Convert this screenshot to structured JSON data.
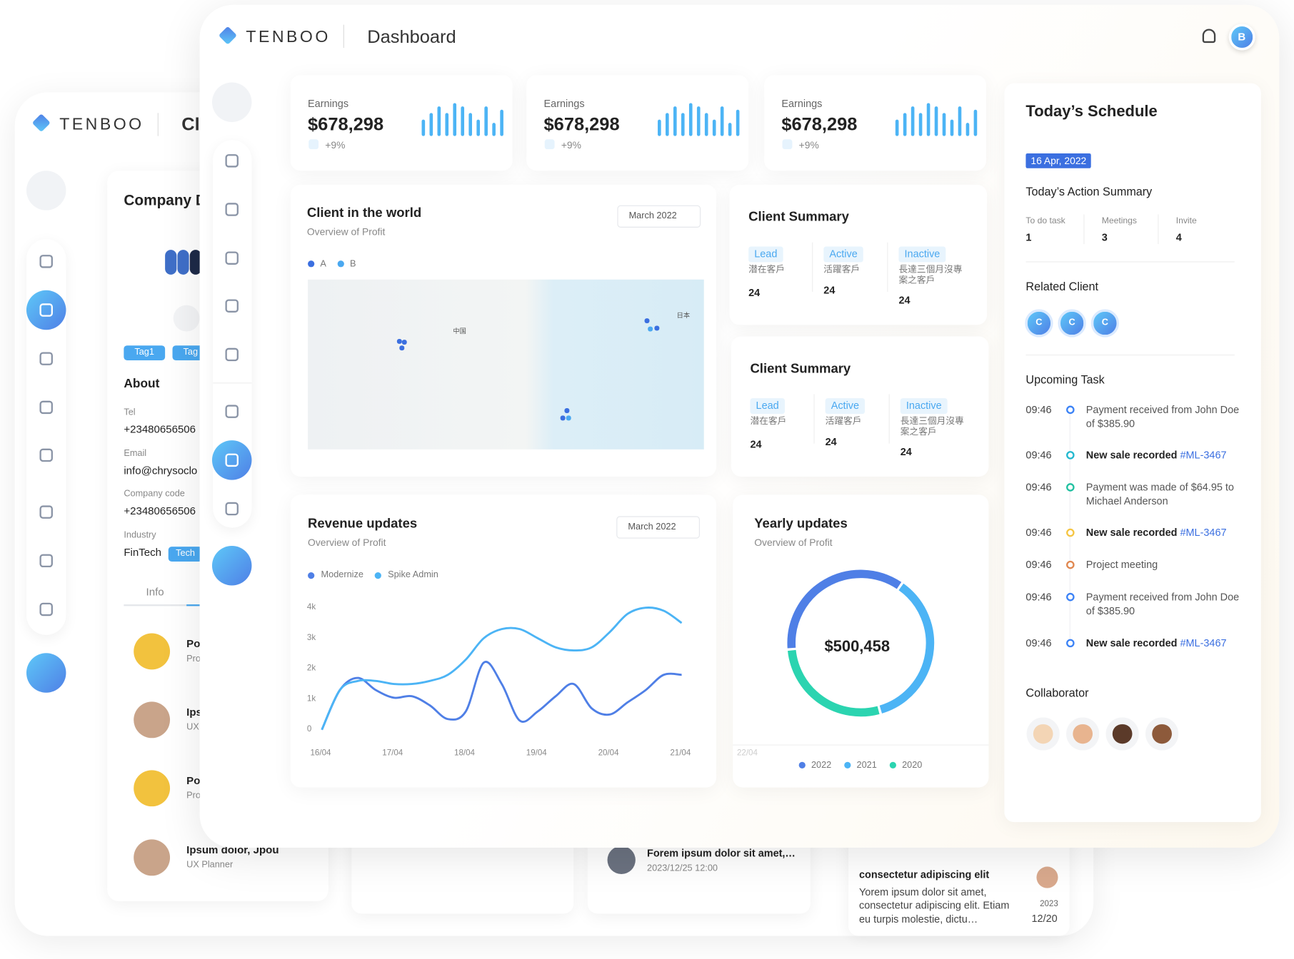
{
  "back": {
    "logo": "TENBOO",
    "title": "Cl",
    "company": {
      "title": "Company D",
      "tags": [
        "Tag1",
        "Tag"
      ],
      "about": "About",
      "fields": [
        {
          "label": "Tel",
          "value": "+23480656506"
        },
        {
          "label": "Email",
          "value": "info@chrysoclo"
        },
        {
          "label": "Company code",
          "value": "+23480656506"
        },
        {
          "label": "Industry",
          "value": "FinTech"
        }
      ],
      "industry_tag": "Tech",
      "tab": "Info",
      "people": [
        {
          "name": "Po",
          "role": "Pro"
        },
        {
          "name": "Ips",
          "role": "UX"
        },
        {
          "name": "Po",
          "role": "Pro"
        },
        {
          "name": "Ipsum dolor, Jpou",
          "role": "UX Planner"
        }
      ]
    },
    "post": {
      "text": "Forem ipsum dolor sit amet,…",
      "date": "2023/12/25 12:00"
    },
    "note": {
      "title": "consectetur adipiscing elit",
      "body": "Yorem ipsum dolor sit amet, consectetur adipiscing elit. Etiam eu turpis molestie, dictu…",
      "year": "2023",
      "date": "12/20"
    }
  },
  "front": {
    "logo": "TENBOO",
    "title": "Dashboard",
    "avatar": "B",
    "earnings": [
      {
        "label": "Earnings",
        "value": "$678,298",
        "change": "+9%",
        "bars": [
          5,
          7,
          9,
          7,
          10,
          9,
          7,
          5,
          9,
          4,
          8
        ]
      },
      {
        "label": "Earnings",
        "value": "$678,298",
        "change": "+9%",
        "bars": [
          5,
          7,
          9,
          7,
          10,
          9,
          7,
          5,
          9,
          4,
          8
        ]
      },
      {
        "label": "Earnings",
        "value": "$678,298",
        "change": "+9%",
        "bars": [
          5,
          7,
          9,
          7,
          10,
          9,
          7,
          5,
          9,
          4,
          8
        ]
      }
    ],
    "world": {
      "title": "Client in the world",
      "subtitle": "Overview of Profit",
      "period": "March 2022",
      "legend": [
        "A",
        "B"
      ],
      "places": [
        "中国",
        "日本"
      ]
    },
    "summaries": [
      {
        "title": "Client Summary",
        "columns": [
          {
            "tag": "Lead",
            "label": "潜在客戶",
            "value": 24
          },
          {
            "tag": "Active",
            "label": "活躍客戶",
            "value": 24
          },
          {
            "tag": "Inactive",
            "label": "長達三個月沒專案之客戶",
            "value": 24
          }
        ]
      },
      {
        "title": "Client Summary",
        "columns": [
          {
            "tag": "Lead",
            "label": "潜在客戶",
            "value": 24
          },
          {
            "tag": "Active",
            "label": "活躍客戶",
            "value": 24
          },
          {
            "tag": "Inactive",
            "label": "長達三個月沒專案之客戶",
            "value": 24
          }
        ]
      }
    ],
    "revenue": {
      "title": "Revenue updates",
      "subtitle": "Overview of Profit",
      "period": "March 2022",
      "chart": {
        "type": "line",
        "categories": [
          "16/04",
          null,
          null,
          null,
          "17/04",
          null,
          null,
          null,
          "18/04",
          null,
          null,
          null,
          "19/04",
          null,
          null,
          null,
          "20/04",
          null,
          null,
          null,
          "21/04"
        ],
        "series": [
          {
            "name": "Modernize",
            "color": "#4f7fe6",
            "values": [
              0,
              1300,
              1700,
              1300,
              1050,
              1100,
              800,
              350,
              600,
              2200,
              1500,
              300,
              600,
              1100,
              1500,
              700,
              500,
              900,
              1300,
              1800,
              1800
            ]
          },
          {
            "name": "Spike Admin",
            "color": "#4cb4f5",
            "values": [
              0,
              1300,
              1600,
              1600,
              1500,
              1500,
              1600,
              1800,
              2300,
              3000,
              3300,
              3300,
              3000,
              2700,
              2600,
              2700,
              3200,
              3800,
              4000,
              3900,
              3500
            ]
          }
        ],
        "ylim": [
          0,
          4000
        ],
        "yticks": [
          0,
          {
            "value": 1000,
            "label": "1k"
          },
          {
            "value": 2000,
            "label": "2k"
          },
          {
            "value": 3000,
            "label": "3k"
          },
          {
            "value": 4000,
            "label": "4k"
          }
        ]
      }
    },
    "yearly": {
      "title": "Yearly updates",
      "subtitle": "Overview of Profit",
      "total": "$500,458",
      "axis_label": "22/04",
      "chart": {
        "type": "donut",
        "categories": [
          "2022",
          "2021",
          "2020"
        ],
        "values": [
          36,
          36,
          28
        ],
        "colors": [
          "#4f7fe6",
          "#4cb4f5",
          "#2bd4b0"
        ]
      }
    },
    "schedule": {
      "title": "Today’s Schedule",
      "date": "16 Apr, 2022",
      "summary_title": "Today’s Action Summary",
      "summary": [
        {
          "label": "To do task",
          "value": 1
        },
        {
          "label": "Meetings",
          "value": 3
        },
        {
          "label": "Invite",
          "value": 4
        }
      ],
      "related_title": "Related Client",
      "related": [
        "C",
        "C",
        "C"
      ],
      "tasks_title": "Upcoming Task",
      "tasks": [
        {
          "time": "09:46",
          "text": "Payment received from John Doe of $385.90",
          "dot": "#3b82f6"
        },
        {
          "time": "09:46",
          "text": "New sale recorded",
          "link": "#ML-3467",
          "dot": "#22b8cf"
        },
        {
          "time": "09:46",
          "text": "Payment was made of $64.95 to Michael Anderson",
          "dot": "#20c0a0"
        },
        {
          "time": "09:46",
          "text": "New sale recorded",
          "link": "#ML-3467",
          "dot": "#f5c542"
        },
        {
          "time": "09:46",
          "text": "Project meeting",
          "dot": "#e0874f"
        },
        {
          "time": "09:46",
          "text": "Payment received from John Doe of $385.90",
          "dot": "#3b82f6"
        },
        {
          "time": "09:46",
          "text": "New sale recorded",
          "link": "#ML-3467",
          "dot": "#3b82f6"
        }
      ],
      "collaborator_title": "Collaborator"
    }
  }
}
